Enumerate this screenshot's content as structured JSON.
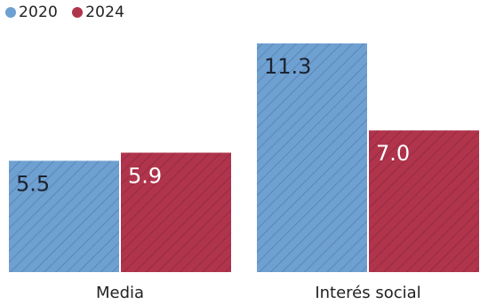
{
  "chart_data": {
    "type": "bar",
    "categories": [
      "Media",
      "Interés social"
    ],
    "series": [
      {
        "name": "2020",
        "values": [
          5.5,
          11.3
        ],
        "labels": [
          "5.5",
          "11.3"
        ],
        "color": "#6ea0d2"
      },
      {
        "name": "2024",
        "values": [
          5.9,
          7.0
        ],
        "labels": [
          "5.9",
          "7.0"
        ],
        "color": "#b0344c"
      }
    ],
    "title": "",
    "xlabel": "",
    "ylabel": "",
    "ylim": [
      0,
      11.3
    ],
    "grid": false,
    "legend_position": "top-left",
    "bar_style": "hatched"
  }
}
